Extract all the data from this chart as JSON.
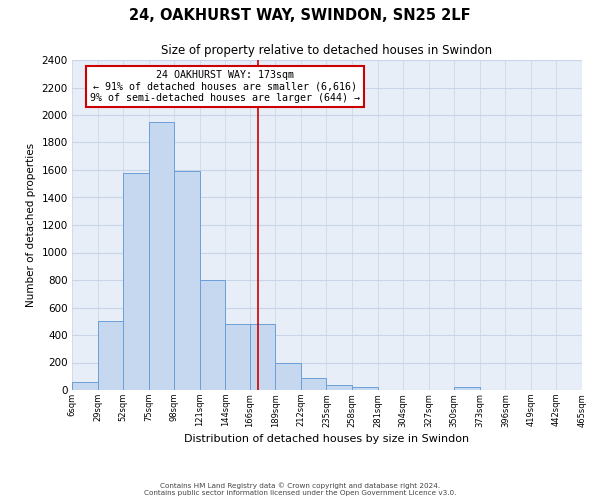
{
  "title": "24, OAKHURST WAY, SWINDON, SN25 2LF",
  "subtitle": "Size of property relative to detached houses in Swindon",
  "xlabel": "Distribution of detached houses by size in Swindon",
  "ylabel": "Number of detached properties",
  "bar_color": "#c5d8f0",
  "bar_edge_color": "#6a9fd8",
  "background_color": "#ffffff",
  "ax_background": "#e8eef7",
  "grid_color": "#c8d4e8",
  "bin_edges": [
    6,
    29,
    52,
    75,
    98,
    121,
    144,
    166,
    189,
    212,
    235,
    258,
    281,
    304,
    327,
    350,
    373,
    396,
    419,
    442,
    465
  ],
  "bin_labels": [
    "6sqm",
    "29sqm",
    "52sqm",
    "75sqm",
    "98sqm",
    "121sqm",
    "144sqm",
    "166sqm",
    "189sqm",
    "212sqm",
    "235sqm",
    "258sqm",
    "281sqm",
    "304sqm",
    "327sqm",
    "350sqm",
    "373sqm",
    "396sqm",
    "419sqm",
    "442sqm",
    "465sqm"
  ],
  "bar_heights": [
    55,
    500,
    1580,
    1950,
    1590,
    800,
    480,
    480,
    195,
    90,
    35,
    25,
    0,
    0,
    0,
    20,
    0,
    0,
    0,
    0
  ],
  "vline_x": 173,
  "vline_color": "#cc0000",
  "annotation_title": "24 OAKHURST WAY: 173sqm",
  "annotation_line1": "← 91% of detached houses are smaller (6,616)",
  "annotation_line2": "9% of semi-detached houses are larger (644) →",
  "annotation_box_color": "#ffffff",
  "annotation_box_edge": "#cc0000",
  "ylim": [
    0,
    2400
  ],
  "yticks": [
    0,
    200,
    400,
    600,
    800,
    1000,
    1200,
    1400,
    1600,
    1800,
    2000,
    2200,
    2400
  ],
  "footer1": "Contains HM Land Registry data © Crown copyright and database right 2024.",
  "footer2": "Contains public sector information licensed under the Open Government Licence v3.0."
}
